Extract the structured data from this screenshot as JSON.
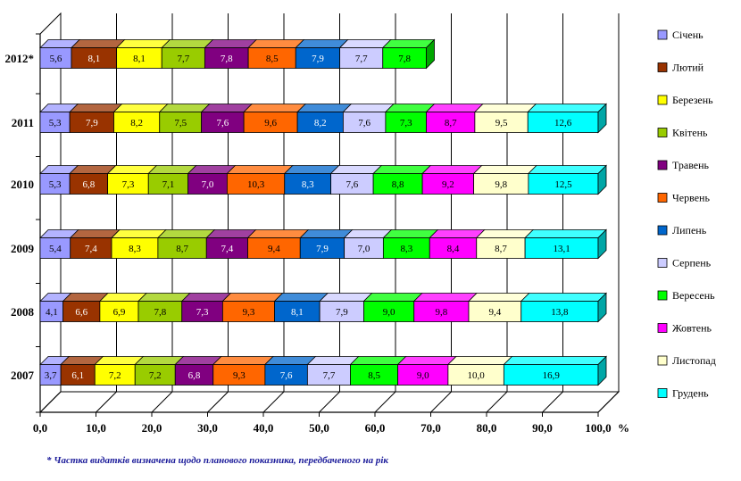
{
  "chart_data": {
    "type": "bar",
    "stacked": true,
    "orientation": "horizontal",
    "three_d": true,
    "categories": [
      "2007",
      "2008",
      "2009",
      "2010",
      "2011",
      "2012*"
    ],
    "xlim": [
      0,
      100
    ],
    "x_ticks": [
      "0,0",
      "10,0",
      "20,0",
      "30,0",
      "40,0",
      "50,0",
      "60,0",
      "70,0",
      "80,0",
      "90,0",
      "100,0"
    ],
    "x_unit": "%",
    "grid": true,
    "legend_position": "right",
    "series": [
      {
        "name": "Січень",
        "color": "#9999ff",
        "values": [
          3.7,
          4.1,
          5.4,
          5.3,
          5.3,
          5.6
        ]
      },
      {
        "name": "Лютий",
        "color": "#993300",
        "values": [
          6.1,
          6.6,
          7.4,
          6.8,
          7.9,
          8.1
        ]
      },
      {
        "name": "Березень",
        "color": "#ffff00",
        "values": [
          7.2,
          6.9,
          8.3,
          7.3,
          8.2,
          8.1
        ]
      },
      {
        "name": "Квітень",
        "color": "#99cc00",
        "values": [
          7.2,
          7.8,
          8.7,
          7.1,
          7.5,
          7.7
        ]
      },
      {
        "name": "Травень",
        "color": "#800080",
        "values": [
          6.8,
          7.3,
          7.4,
          7.0,
          7.6,
          7.8
        ]
      },
      {
        "name": "Червень",
        "color": "#ff6600",
        "values": [
          9.3,
          9.3,
          9.4,
          10.3,
          9.6,
          8.5
        ]
      },
      {
        "name": "Липень",
        "color": "#0066cc",
        "values": [
          7.6,
          8.1,
          7.9,
          8.3,
          8.2,
          7.9
        ]
      },
      {
        "name": "Серпень",
        "color": "#ccccff",
        "values": [
          7.7,
          7.9,
          7.0,
          7.6,
          7.6,
          7.7
        ]
      },
      {
        "name": "Вересень",
        "color": "#00ff00",
        "values": [
          8.5,
          9.0,
          8.3,
          8.8,
          7.3,
          7.8
        ]
      },
      {
        "name": "Жовтень",
        "color": "#ff00ff",
        "values": [
          9.0,
          9.8,
          8.4,
          9.2,
          8.7,
          null
        ]
      },
      {
        "name": "Листопад",
        "color": "#ffffcc",
        "values": [
          10.0,
          9.4,
          8.7,
          9.8,
          9.5,
          null
        ]
      },
      {
        "name": "Грудень",
        "color": "#00ffff",
        "values": [
          16.9,
          13.8,
          13.1,
          12.5,
          12.6,
          null
        ]
      }
    ],
    "footnote": "* Частка видатків визначена щодо планового показника, передбаченого на рік"
  }
}
